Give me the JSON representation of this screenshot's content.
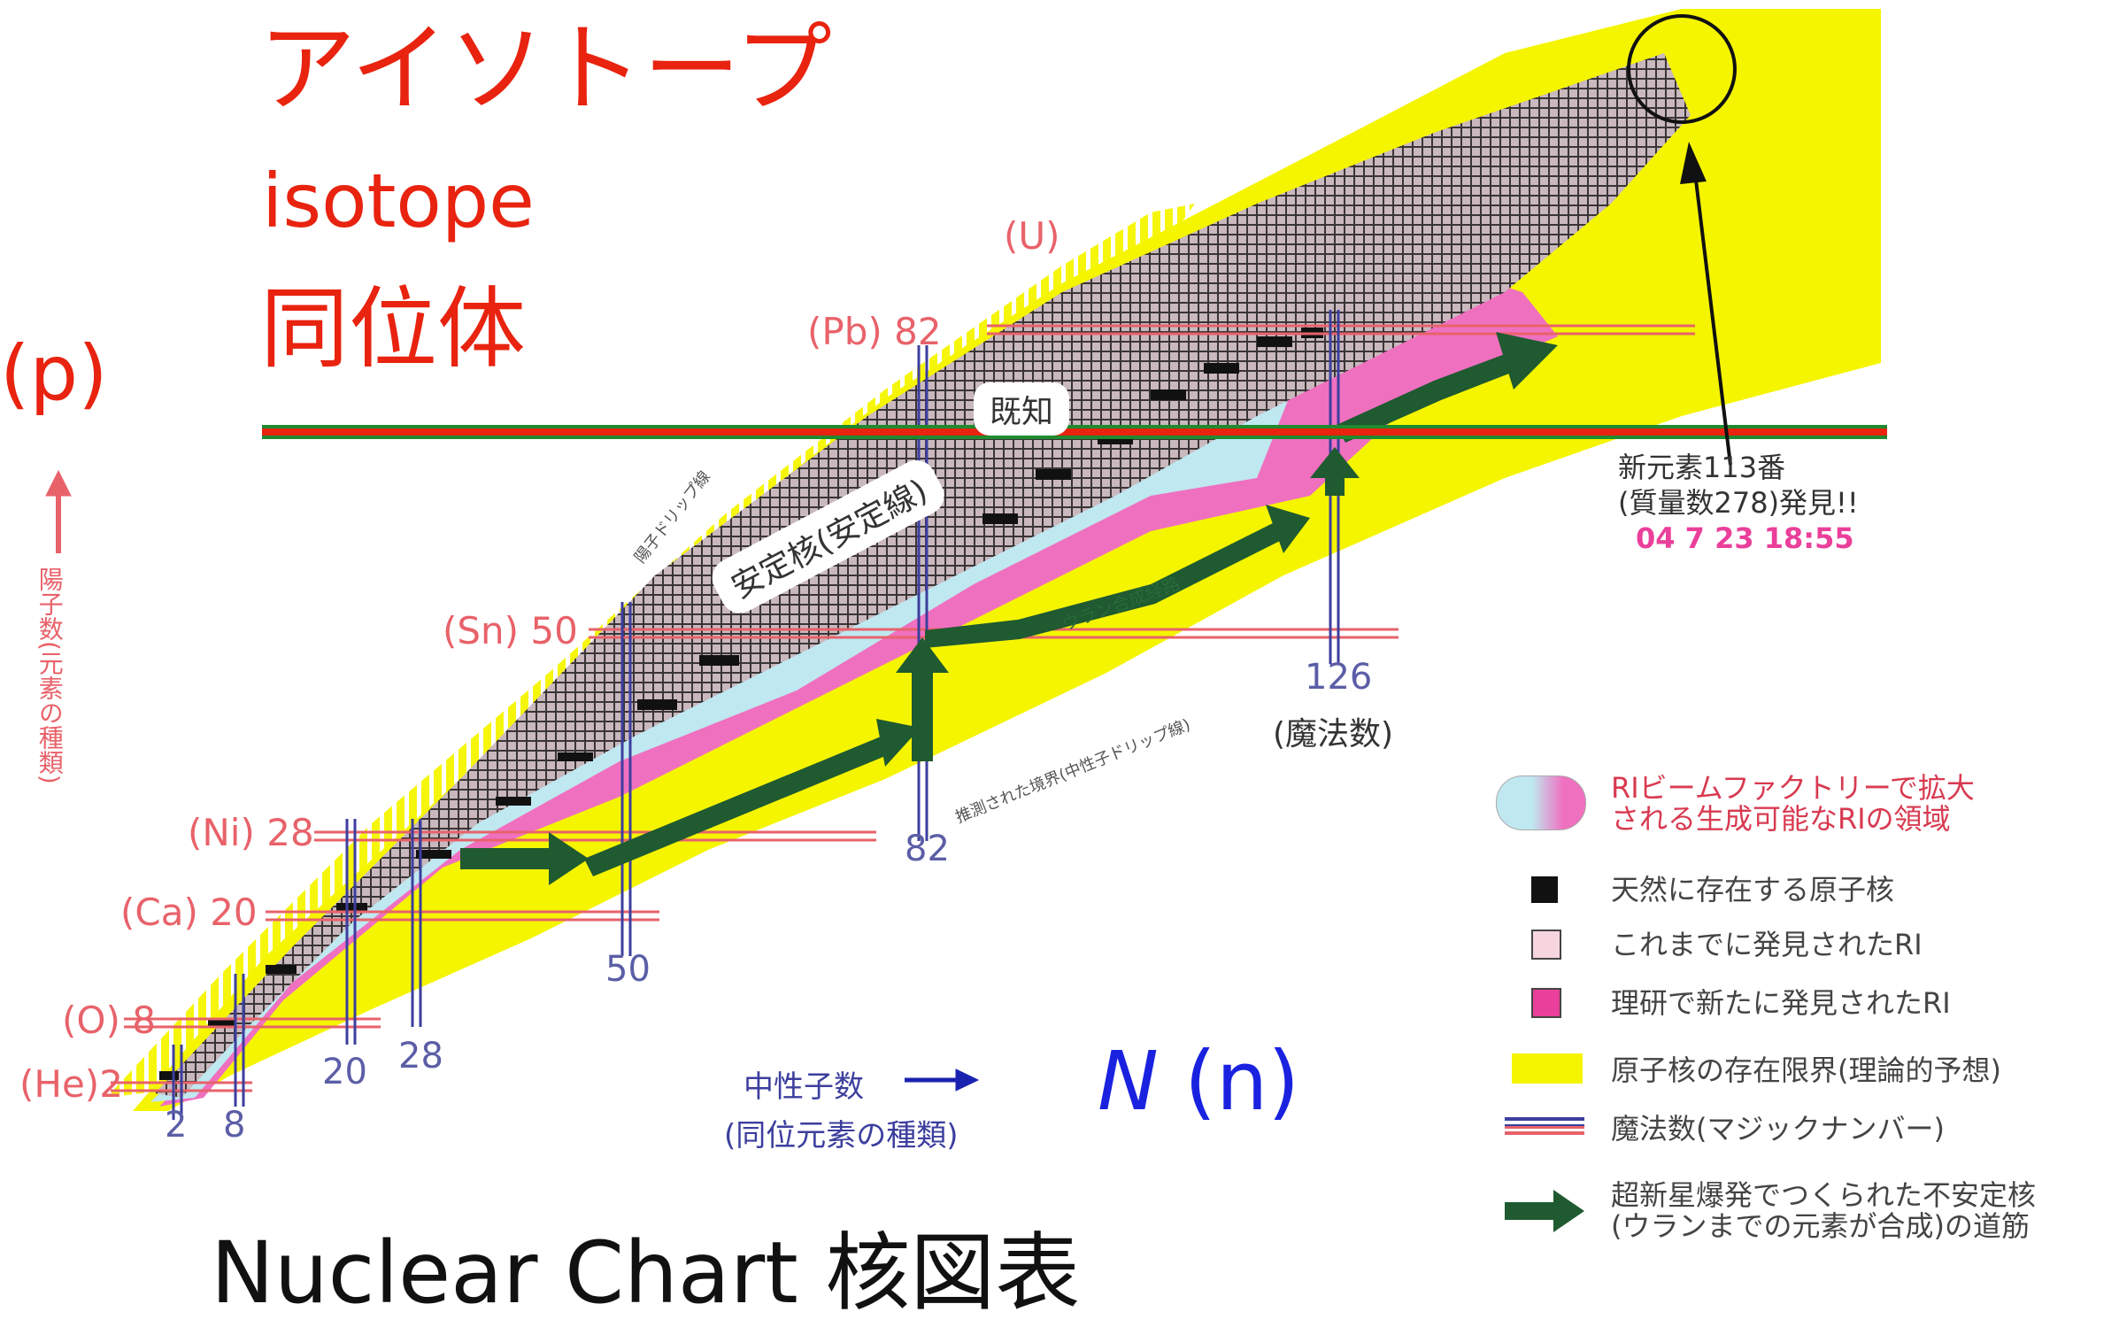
{
  "title": {
    "katakana": "アイソトープ",
    "english": "isotope",
    "kanji": "同位体",
    "proton_label": "(p)",
    "neutron_label_italic": "N",
    "neutron_label": "(n)",
    "bottom_caption": "Nuclear Chart 核図表"
  },
  "axes": {
    "y_label_line1": "陽子数",
    "y_label_line2": "(元素の種類)",
    "x_label_line1": "中性子数",
    "x_label_line2": "(同位元素の種類)"
  },
  "elements": [
    {
      "label": "(He)",
      "num": "2"
    },
    {
      "label": "(O)",
      "num": "8"
    },
    {
      "label": "(Ca)",
      "num": "20"
    },
    {
      "label": "(Ni)",
      "num": "28"
    },
    {
      "label": "(Sn)",
      "num": "50"
    },
    {
      "label": "(Pb)",
      "num": "82"
    },
    {
      "label": "(U)",
      "num": ""
    }
  ],
  "neutron_magic": [
    "2",
    "8",
    "20",
    "28",
    "50",
    "82",
    "126"
  ],
  "magic_caption": "(魔法数)",
  "annotations": {
    "known": "既知",
    "stable": "安定核(安定線)",
    "proton_drip": "陽子ドリップ線",
    "neutron_drip": "推測された境界(中性子ドリップ線)",
    "uranium_path": "ウラン合成経路",
    "new_element_line1": "新元素113番",
    "new_element_line2": "(質量数278)発見!!",
    "new_element_date": "04 7 23 18:55"
  },
  "legend": [
    {
      "key": "ri_factory",
      "text_line1": "RIビームファクトリーで拡大",
      "text_line2": "される生成可能なRIの領域"
    },
    {
      "key": "natural",
      "text_line1": "天然に存在する原子核",
      "text_line2": ""
    },
    {
      "key": "discovered",
      "text_line1": "これまでに発見されたRI",
      "text_line2": ""
    },
    {
      "key": "riken",
      "text_line1": "理研で新たに発見されたRI",
      "text_line2": ""
    },
    {
      "key": "limit",
      "text_line1": "原子核の存在限界(理論的予想)",
      "text_line2": ""
    },
    {
      "key": "magic",
      "text_line1": "魔法数(マジックナンバー)",
      "text_line2": ""
    },
    {
      "key": "supernova",
      "text_line1": "超新星爆発でつくられた不安定核",
      "text_line2": "(ウランまでの元素が合成)の道筋"
    }
  ],
  "colors": {
    "title_red": "#e8230f",
    "label_blue": "#1a22e0",
    "yellow": "#f5f500",
    "pink": "#f070c0",
    "light_blue": "#bfe8f0",
    "grid_gray": "#8f8a8a",
    "arrow_green": "#1f5a30",
    "line_green": "#1f8a2e",
    "line_red": "#e8230f"
  }
}
